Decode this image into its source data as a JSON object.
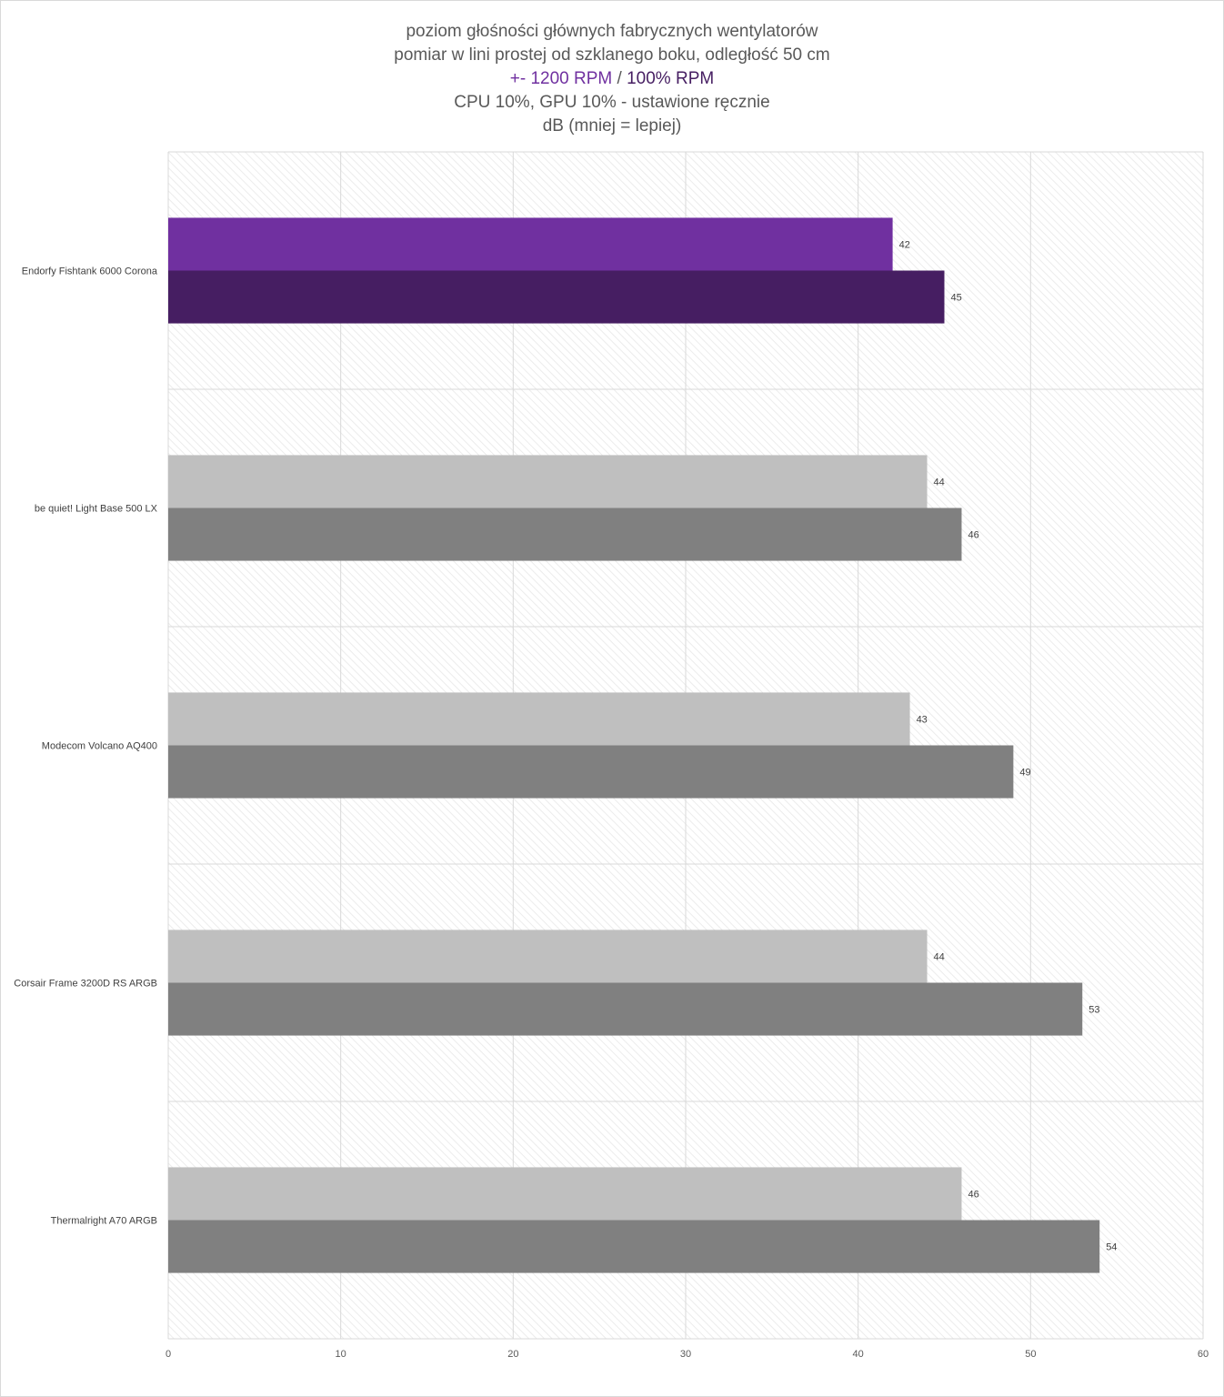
{
  "chart_data": {
    "type": "bar",
    "orientation": "horizontal",
    "title_lines": [
      "poziom głośności głównych fabrycznych wentylatorów",
      "pomiar w lini prostej od szklanego boku, odległość 50 cm"
    ],
    "series_line": {
      "first": "+- 1200 RPM",
      "separator": " / ",
      "second": "100% RPM"
    },
    "subtitle_lines": [
      "CPU 10%, GPU 10% - ustawione ręcznie",
      "dB (mniej = lepiej)"
    ],
    "categories": [
      "Endorfy Fishtank 6000 Corona",
      "be quiet! Light Base 500 LX",
      "Modecom Volcano AQ400",
      "Corsair Frame 3200D RS ARGB",
      "Thermalright A70 ARGB"
    ],
    "series": [
      {
        "name": "+- 1200 RPM",
        "values": [
          42,
          44,
          43,
          44,
          46
        ]
      },
      {
        "name": "100% RPM",
        "values": [
          45,
          46,
          49,
          53,
          54
        ]
      }
    ],
    "highlight_index": 0,
    "colors": {
      "highlight_series1": "#7030a0",
      "highlight_series2": "#461e62",
      "other_series1": "#bfbfbf",
      "other_series2": "#808080",
      "grid": "#d9d9d9"
    },
    "xlim": [
      0,
      60
    ],
    "xticks": [
      "0",
      "10",
      "20",
      "30",
      "40",
      "50",
      "60"
    ],
    "grid": true,
    "legend": "none",
    "data_labels": true
  }
}
